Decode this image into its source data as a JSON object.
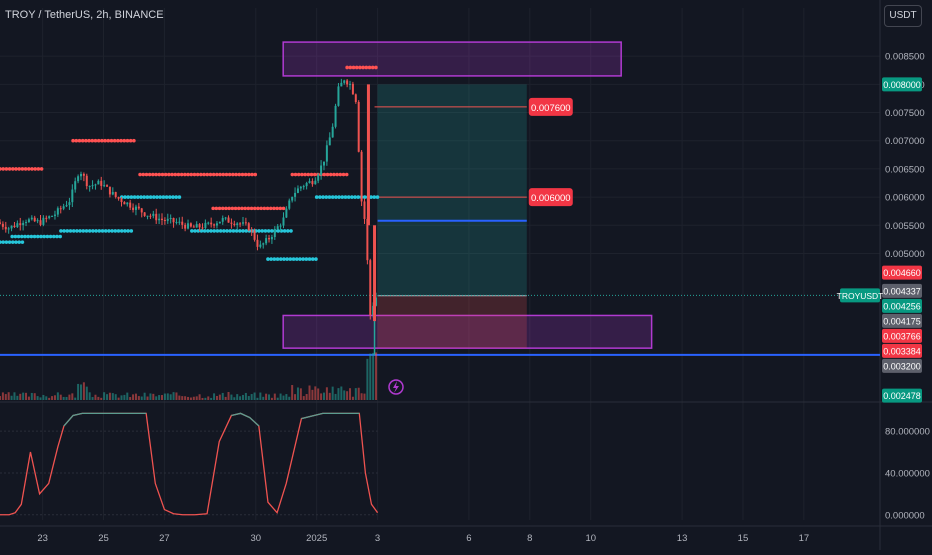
{
  "header": {
    "symbol_title": "TROY / TetherUS, 2h, BINANCE",
    "currency_button": "USDT"
  },
  "colors": {
    "background": "#131722",
    "up": "#26a69a",
    "down": "#ef5350",
    "resistance_dots": "#ff5252",
    "support_dots": "#26c6da",
    "zone": "#b13ad1",
    "level_line": "#2962ff",
    "target_fill": "#26a69a",
    "stop_fill": "#ef5350",
    "oscillator": "#ef5350"
  },
  "icons": {
    "lightning": "lightning-icon"
  },
  "chart_data": [
    {
      "type": "candlestick",
      "title": "TROY / TetherUS, 2h, BINANCE",
      "y_ticks": [
        "0.008500",
        "0.008000",
        "0.007500",
        "0.007000",
        "0.006500",
        "0.006000",
        "0.005500",
        "0.005000"
      ],
      "y_tick_values": [
        0.0085,
        0.008,
        0.0075,
        0.007,
        0.0065,
        0.006,
        0.0055,
        0.005
      ],
      "x_ticks": [
        "23",
        "25",
        "27",
        "30",
        "2025",
        "3",
        "6",
        "8",
        "10",
        "13",
        "15",
        "17"
      ],
      "x_tick_values": [
        23,
        25,
        27,
        30,
        32,
        34,
        37,
        39,
        41,
        44,
        46,
        48
      ],
      "x_unit_note": "",
      "ylim": [
        0.0024,
        0.009
      ],
      "xlim": [
        21.6,
        50.5
      ],
      "price_path": [
        [
          21.6,
          0.00555
        ],
        [
          22.0,
          0.00545
        ],
        [
          22.5,
          0.0056
        ],
        [
          23.0,
          0.00555
        ],
        [
          23.5,
          0.0057
        ],
        [
          24.0,
          0.00595
        ],
        [
          24.3,
          0.0065
        ],
        [
          24.6,
          0.0062
        ],
        [
          25.0,
          0.00625
        ],
        [
          25.5,
          0.006
        ],
        [
          26.0,
          0.00585
        ],
        [
          26.5,
          0.0057
        ],
        [
          27.0,
          0.0056
        ],
        [
          27.5,
          0.00555
        ],
        [
          28.0,
          0.00545
        ],
        [
          28.5,
          0.0055
        ],
        [
          29.0,
          0.0056
        ],
        [
          29.5,
          0.00555
        ],
        [
          29.9,
          0.00545
        ],
        [
          30.2,
          0.0051
        ],
        [
          30.5,
          0.00525
        ],
        [
          31.0,
          0.0056
        ],
        [
          31.3,
          0.00605
        ],
        [
          31.6,
          0.0062
        ],
        [
          32.0,
          0.0063
        ],
        [
          32.3,
          0.0066
        ],
        [
          32.6,
          0.0072
        ],
        [
          32.8,
          0.0079
        ],
        [
          33.0,
          0.0081
        ],
        [
          33.2,
          0.008
        ],
        [
          33.4,
          0.0077
        ],
        [
          33.55,
          0.006
        ],
        [
          33.7,
          0.0055
        ],
        [
          33.85,
          0.0039
        ],
        [
          34.0,
          0.0042
        ],
        [
          34.1,
          0.00425
        ]
      ],
      "ohlc_last": {
        "low": 0.0032,
        "high": 0.0046
      },
      "resistance_dots": [
        [
          21.6,
          23.0,
          0.0065
        ],
        [
          24.0,
          26.0,
          0.007
        ],
        [
          26.2,
          30.0,
          0.0064
        ],
        [
          28.6,
          31.0,
          0.0058
        ],
        [
          31.2,
          33.0,
          0.0064
        ],
        [
          33.0,
          34.0,
          0.0083
        ]
      ],
      "support_dots": [
        [
          21.6,
          22.4,
          0.0052
        ],
        [
          22.0,
          23.6,
          0.0053
        ],
        [
          23.6,
          26.0,
          0.0054
        ],
        [
          25.6,
          27.5,
          0.006
        ],
        [
          27.9,
          31.2,
          0.0054
        ],
        [
          30.4,
          32.0,
          0.0049
        ],
        [
          32.0,
          34.0,
          0.006
        ]
      ],
      "zones": [
        {
          "x0": 30.9,
          "x1": 42.0,
          "y0": 0.00815,
          "y1": 0.00875
        },
        {
          "x0": 30.9,
          "x1": 43.0,
          "y0": 0.00332,
          "y1": 0.0039
        }
      ],
      "target_box": {
        "x0": 34.0,
        "x1": 38.9,
        "entry": 0.00425,
        "target": 0.008,
        "stop": 0.00332
      },
      "target_labels": [
        {
          "price": 0.0076,
          "label": "0.007600"
        },
        {
          "price": 0.006,
          "label": "0.006000"
        }
      ],
      "level_lines": [
        {
          "price": 0.00558,
          "x0": 34.0,
          "x1": 38.9
        },
        {
          "price": 0.0032,
          "x0": 21.6,
          "x1": 50.5
        }
      ],
      "price_labels": [
        {
          "text": "0.008000",
          "value": 0.008,
          "color": "#089981"
        },
        {
          "text": "0.004660",
          "value": 0.00466,
          "color": "#f23645"
        },
        {
          "text": "0.004337",
          "value": 0.004337,
          "color": "#5d606b"
        },
        {
          "text": "0.004256",
          "value": 0.004256,
          "color": "#089981"
        },
        {
          "text": "0.004175",
          "value": 0.004175,
          "color": "#5d606b"
        },
        {
          "text": "0.003766",
          "value": 0.003766,
          "color": "#f23645"
        },
        {
          "text": "0.003384",
          "value": 0.003384,
          "color": "#f23645"
        },
        {
          "text": "0.003200",
          "value": 0.0032,
          "color": "#5d606b"
        },
        {
          "text": "0.002478",
          "value": 0.002478,
          "color": "#089981"
        }
      ],
      "symbol_tag": {
        "text": "TROYUSDT",
        "value": 0.004256
      }
    },
    {
      "type": "line",
      "name": "",
      "y_ticks": [
        "80.000000",
        "40.000000",
        "0.000000"
      ],
      "y_tick_values": [
        80,
        40,
        0
      ],
      "ylim": [
        -5,
        105
      ],
      "x": [
        21.6,
        21.9,
        22.1,
        22.3,
        22.6,
        22.9,
        23.2,
        23.5,
        23.7,
        24.0,
        24.3,
        24.6,
        25.0,
        25.8,
        26.4,
        26.7,
        27.0,
        27.3,
        27.6,
        28.0,
        28.4,
        28.8,
        29.2,
        29.5,
        29.8,
        30.1,
        30.4,
        30.7,
        31.0,
        31.5,
        32.2,
        33.0,
        33.4,
        33.6,
        33.8,
        34.0
      ],
      "values": [
        0,
        0,
        2,
        10,
        60,
        20,
        30,
        65,
        85,
        95,
        97,
        97,
        97,
        97,
        97,
        30,
        5,
        1,
        0,
        0,
        1,
        70,
        95,
        97,
        93,
        85,
        12,
        2,
        30,
        92,
        97,
        97,
        97,
        40,
        10,
        2
      ]
    }
  ]
}
